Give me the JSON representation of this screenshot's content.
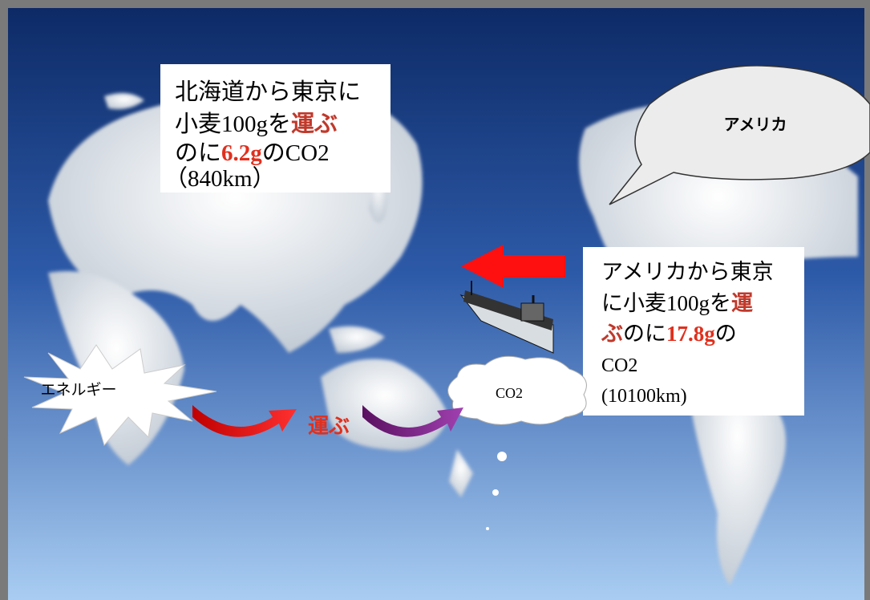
{
  "hokkaido_box": {
    "line1": "北海道から東京に",
    "line2": [
      "小麦",
      "100g",
      "を",
      "運ぶ"
    ],
    "line3": [
      "のに",
      "6.2g",
      "の",
      "CO2"
    ],
    "line4": "（840km）"
  },
  "america_box": {
    "line1": "アメリカから東京",
    "line2": [
      "に小麦",
      "100g",
      "を",
      "運"
    ],
    "line3": [
      "ぶ",
      "のに",
      "17.8g",
      "の"
    ],
    "line4": "CO2",
    "line5": "(10100km)"
  },
  "bubble": "アメリカ",
  "energy_label": "エネルギー",
  "cloud_label": "CO2",
  "transport_label": "運ぶ"
}
